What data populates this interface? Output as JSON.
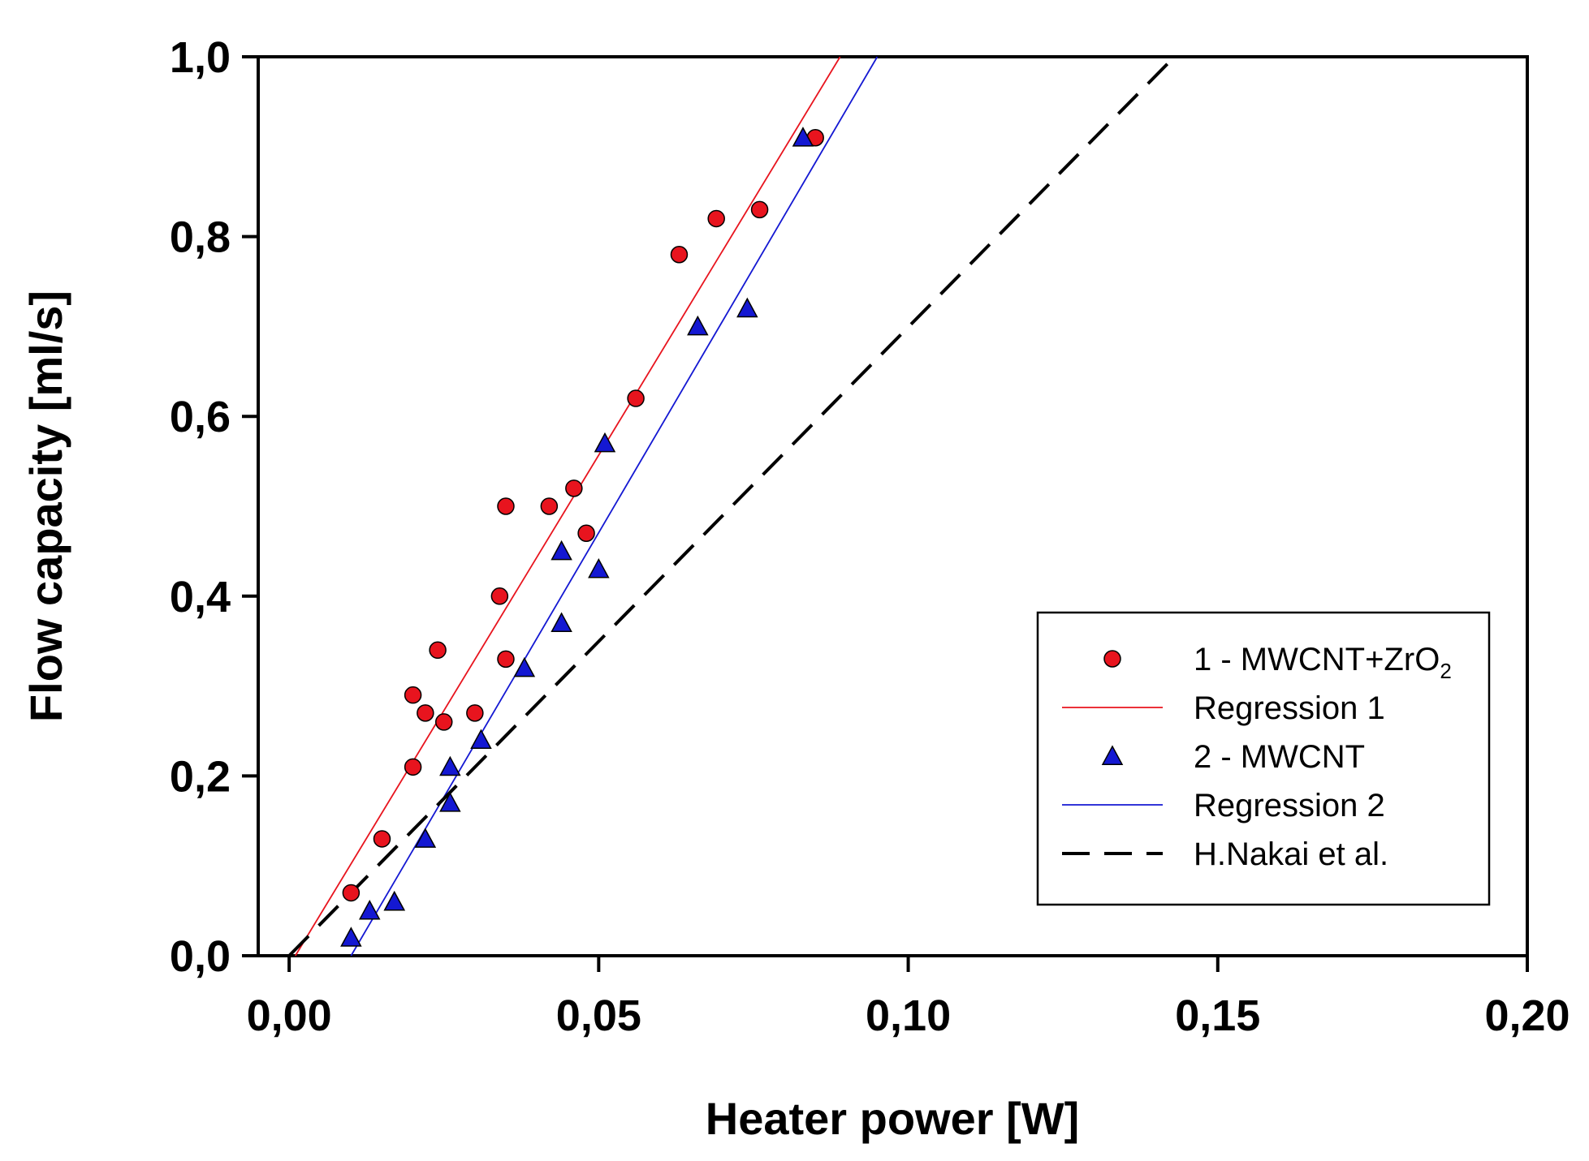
{
  "chart_data": {
    "type": "scatter",
    "xlabel": "Heater power [W]",
    "ylabel": "Flow capacity [ml/s]",
    "xlim": [
      -0.005,
      0.2
    ],
    "ylim": [
      0.0,
      1.0
    ],
    "x_ticks": [
      0.0,
      0.05,
      0.1,
      0.15,
      0.2
    ],
    "x_tick_labels": [
      "0,00",
      "0,05",
      "0,10",
      "0,15",
      "0,20"
    ],
    "y_ticks": [
      0.0,
      0.2,
      0.4,
      0.6,
      0.8,
      1.0
    ],
    "y_tick_labels": [
      "0,0",
      "0,2",
      "0,4",
      "0,6",
      "0,8",
      "1,0"
    ],
    "grid": false,
    "legend_position": "bottom-right",
    "series": [
      {
        "name": "1 - MWCNT+ZrO",
        "name_subscript": "2",
        "kind": "points",
        "marker": "circle",
        "color": "#e8141e",
        "x": [
          0.01,
          0.015,
          0.02,
          0.02,
          0.022,
          0.024,
          0.025,
          0.03,
          0.034,
          0.035,
          0.035,
          0.042,
          0.046,
          0.048,
          0.056,
          0.063,
          0.069,
          0.076,
          0.085
        ],
        "y": [
          0.07,
          0.13,
          0.21,
          0.29,
          0.27,
          0.34,
          0.26,
          0.27,
          0.4,
          0.5,
          0.33,
          0.5,
          0.52,
          0.47,
          0.62,
          0.78,
          0.82,
          0.83,
          0.91
        ]
      },
      {
        "name": "Regression 1",
        "kind": "line",
        "color": "#e8141e",
        "dash": "solid",
        "x": [
          0.001,
          0.089
        ],
        "y": [
          0.0,
          1.0
        ]
      },
      {
        "name": "2 - MWCNT",
        "kind": "points",
        "marker": "triangle",
        "color": "#1418d2",
        "x": [
          0.01,
          0.013,
          0.017,
          0.017,
          0.022,
          0.026,
          0.026,
          0.031,
          0.038,
          0.044,
          0.044,
          0.05,
          0.051,
          0.066,
          0.074,
          0.083
        ],
        "y": [
          0.02,
          0.05,
          0.06,
          0.06,
          0.13,
          0.17,
          0.21,
          0.24,
          0.32,
          0.37,
          0.45,
          0.43,
          0.57,
          0.7,
          0.72,
          0.91
        ]
      },
      {
        "name": "Regression 2",
        "kind": "line",
        "color": "#1418d2",
        "dash": "solid",
        "x": [
          0.01,
          0.095
        ],
        "y": [
          0.0,
          1.0
        ]
      },
      {
        "name": "H.Nakai et al.",
        "kind": "line",
        "color": "#000000",
        "dash": "dashed",
        "x": [
          0.0,
          0.143
        ],
        "y": [
          0.0,
          1.0
        ]
      }
    ]
  }
}
